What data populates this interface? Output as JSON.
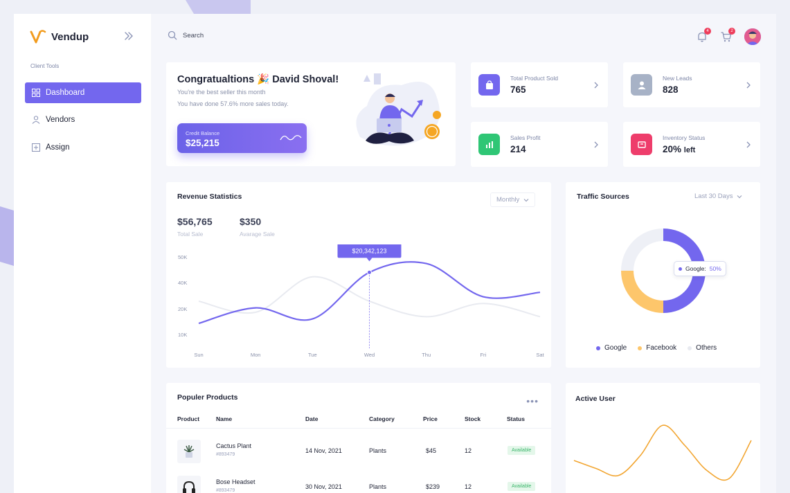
{
  "brand": {
    "name": "Vendup"
  },
  "sidebar": {
    "section_label": "Client Tools",
    "items": [
      {
        "label": "Dashboard",
        "icon": "grid-icon",
        "active": true
      },
      {
        "label": "Vendors",
        "icon": "user-icon",
        "active": false
      },
      {
        "label": "Assign",
        "icon": "plus-square-icon",
        "active": false
      }
    ]
  },
  "topbar": {
    "search_placeholder": "Search",
    "notifications_count": "4",
    "cart_count": "2"
  },
  "congrats": {
    "title": "Congratualtions 🎉 David Shoval!",
    "line1": "You're the best seller this month",
    "line2": "You have done 57.6% more sales today.",
    "credit_label": "Credit Balance",
    "credit_value": "$25,215"
  },
  "stats": [
    {
      "label": "Total Product Sold",
      "value": "765",
      "suffix": "",
      "color": "#7367ee",
      "icon": "shopping-bag-icon"
    },
    {
      "label": "New Leads",
      "value": "828",
      "suffix": "",
      "color": "#a7b2c6",
      "icon": "user-icon"
    },
    {
      "label": "Sales Profit",
      "value": "214",
      "suffix": "",
      "color": "#2fc675",
      "icon": "bar-chart-icon"
    },
    {
      "label": "Inventory Status",
      "value": "20%",
      "suffix": "left",
      "color": "#ee3d6b",
      "icon": "box-icon"
    }
  ],
  "revenue": {
    "title": "Revenue Statistics",
    "period": "Monthly",
    "total_sale": "$56,765",
    "total_sale_label": "Total Sale",
    "avg_sale": "$350",
    "avg_sale_label": "Avarage Sale",
    "tooltip": "$20,342,123"
  },
  "traffic": {
    "title": "Traffic Sources",
    "period": "Last 30 Days",
    "tooltip_label": "Google:",
    "tooltip_value": "50%"
  },
  "products": {
    "title": "Populer Products",
    "more_label": "•••",
    "columns": [
      "Product",
      "Name",
      "Date",
      "Category",
      "Price",
      "Stock",
      "Status"
    ],
    "rows": [
      {
        "name": "Cactus Plant",
        "sku": "#893479",
        "date": "14 Nov, 2021",
        "category": "Plants",
        "price": "$45",
        "stock": "12",
        "status": "Available",
        "icon": "plant-icon"
      },
      {
        "name": "Bose Headset",
        "sku": "#893479",
        "date": "30 Nov, 2021",
        "category": "Plants",
        "price": "$239",
        "stock": "12",
        "status": "Available",
        "icon": "headphones-icon"
      }
    ]
  },
  "active_user": {
    "title": "Active User"
  },
  "chart_data": [
    {
      "type": "line",
      "categories": [
        "Sun",
        "Mon",
        "Tue",
        "Wed",
        "Thu",
        "Fri",
        "Sat"
      ],
      "y_ticks": [
        "50K",
        "40K",
        "20K",
        "10K"
      ],
      "series": [
        {
          "values": [
            10,
            17,
            12,
            33,
            37,
            22,
            24
          ],
          "color": "#7367ee"
        },
        {
          "values": [
            20,
            15,
            31,
            20,
            13,
            19,
            13
          ],
          "color": "#e8eaf0"
        }
      ],
      "highlight": {
        "category": "Wed",
        "label": "$20,342,123"
      }
    },
    {
      "type": "pie",
      "series": [
        {
          "name": "Google",
          "value": 50,
          "color": "#7367ee"
        },
        {
          "name": "Facebook",
          "value": 25,
          "color": "#fdc66b"
        },
        {
          "name": "Others",
          "value": 25,
          "color": "#eef0f6"
        }
      ]
    },
    {
      "type": "line",
      "series": [
        {
          "values": [
            40,
            32,
            25,
            45,
            75,
            55,
            30,
            22,
            60
          ],
          "color": "#f2a530"
        }
      ]
    }
  ]
}
